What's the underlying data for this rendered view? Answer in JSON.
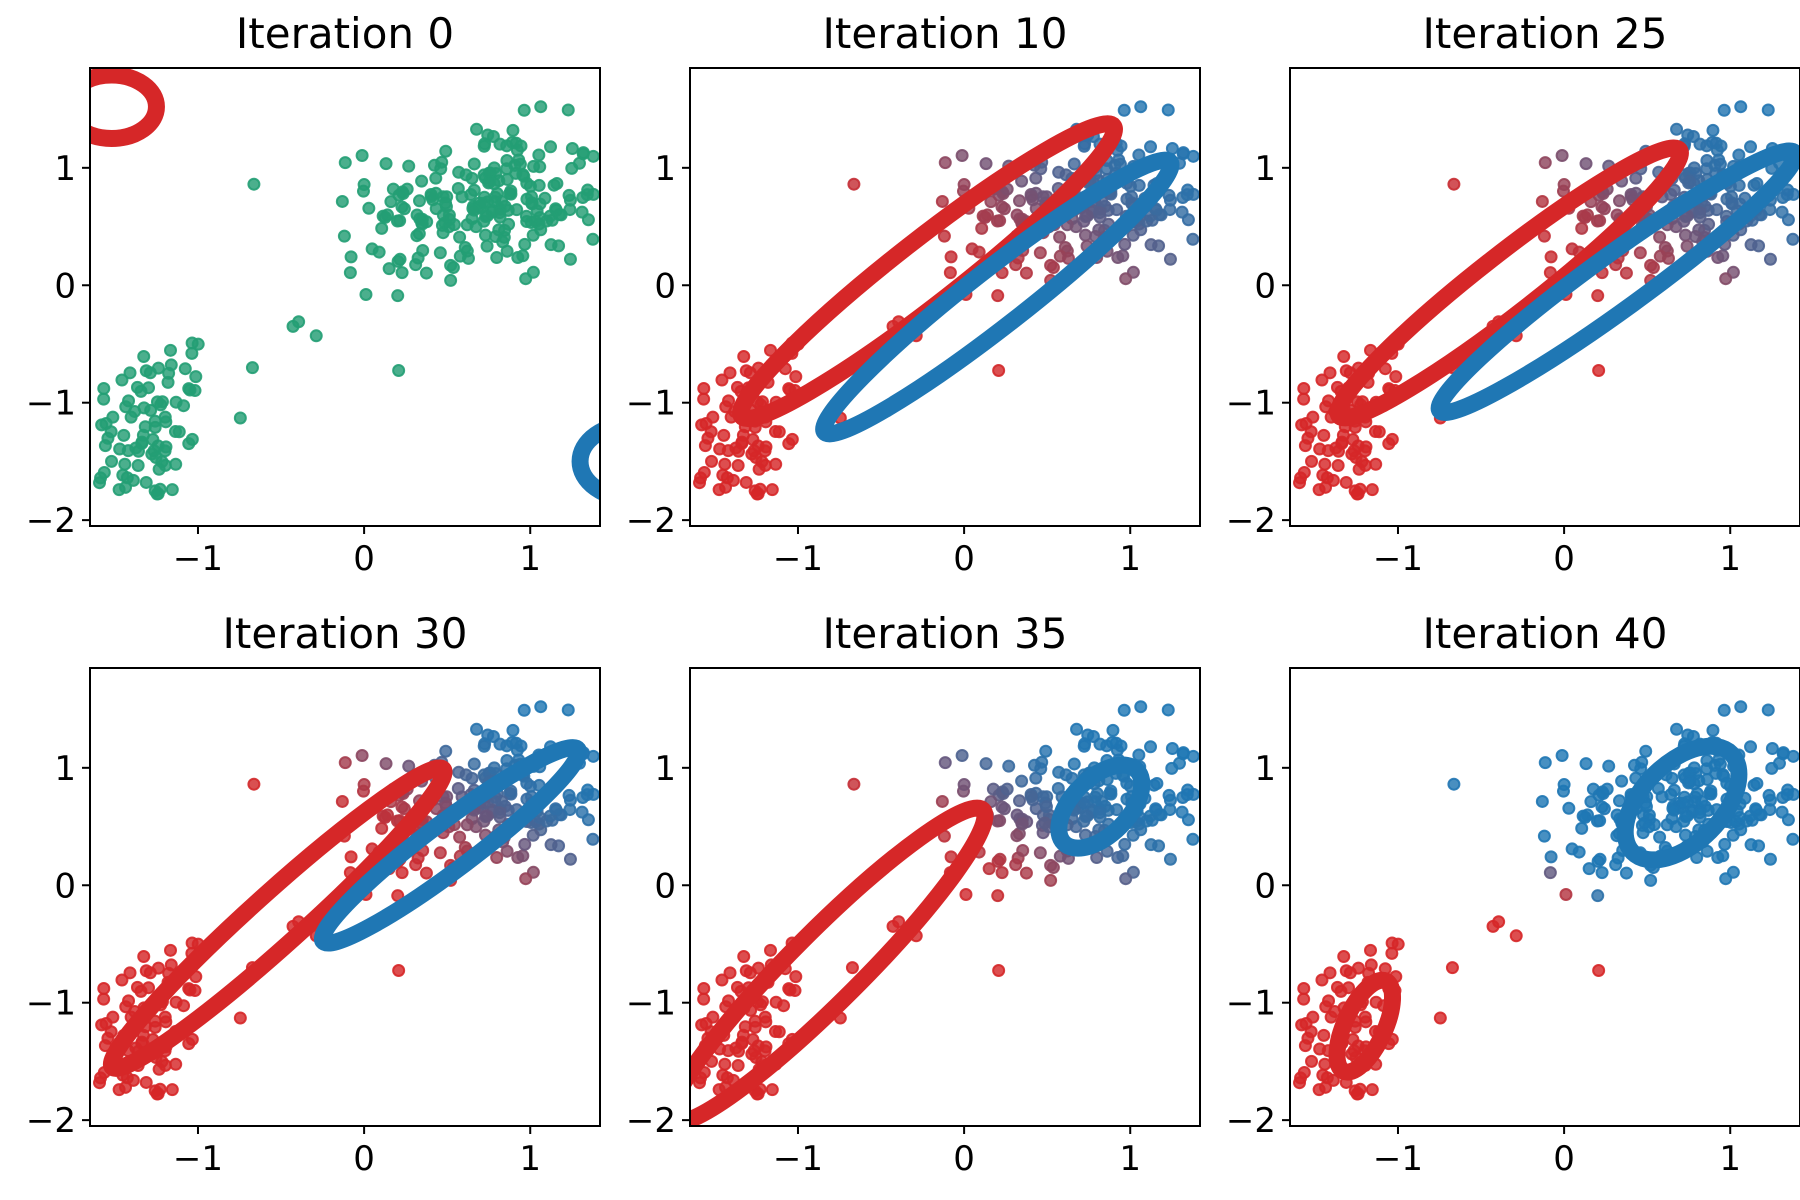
{
  "chart_data": {
    "type": "scatter",
    "description_of_layout": "2 rows x 3 columns of small-multiple scatter plots",
    "xlim": [
      -1.65,
      1.42
    ],
    "ylim": [
      -2.05,
      1.85
    ],
    "xticks": [
      -1,
      0,
      1
    ],
    "yticks": [
      -2,
      -1,
      0,
      1
    ],
    "xtick_labels": [
      "−1",
      "0",
      "1"
    ],
    "ytick_labels": [
      "−2",
      "−1",
      "0",
      "1"
    ],
    "grid": false,
    "colors": {
      "cluster_a": "#d62728",
      "cluster_b": "#1f77b4",
      "unassigned": "#239e74"
    },
    "points_note": "Same data set (two Gaussian blobs) shown in all panels; point color encodes responsibility toward cluster_b (0 = red, 1 = blue).",
    "cluster_centers": [
      [
        -1.3,
        -1.2
      ],
      [
        0.75,
        0.7
      ]
    ],
    "panels": [
      {
        "title": "Iteration 0",
        "mode": "unassigned",
        "ellipses": [
          {
            "color": "cluster_a",
            "cx": -1.52,
            "cy": 1.52,
            "rx": 0.27,
            "ry": 0.27,
            "angle": 0
          },
          {
            "color": "cluster_b",
            "cx": 1.62,
            "cy": -1.5,
            "rx": 0.32,
            "ry": 0.32,
            "angle": 0
          }
        ]
      },
      {
        "title": "Iteration 10",
        "mode": "soft",
        "split": 0.55,
        "softness": 0.45,
        "ellipses": [
          {
            "color": "cluster_a",
            "cx": -0.22,
            "cy": 0.12,
            "rx": 1.42,
            "ry": 0.27,
            "angle": 38
          },
          {
            "color": "cluster_b",
            "cx": 0.2,
            "cy": -0.1,
            "rx": 1.32,
            "ry": 0.24,
            "angle": 38
          }
        ]
      },
      {
        "title": "Iteration 25",
        "mode": "soft",
        "split": 0.55,
        "softness": 0.4,
        "ellipses": [
          {
            "color": "cluster_a",
            "cx": -0.33,
            "cy": 0.02,
            "rx": 1.3,
            "ry": 0.25,
            "angle": 38
          },
          {
            "color": "cluster_b",
            "cx": 0.32,
            "cy": 0.03,
            "rx": 1.32,
            "ry": 0.23,
            "angle": 36
          }
        ]
      },
      {
        "title": "Iteration 30",
        "mode": "soft",
        "split": 0.6,
        "softness": 0.3,
        "ellipses": [
          {
            "color": "cluster_a",
            "cx": -0.52,
            "cy": -0.28,
            "rx": 1.34,
            "ry": 0.22,
            "angle": 42
          },
          {
            "color": "cluster_b",
            "cx": 0.52,
            "cy": 0.34,
            "rx": 0.96,
            "ry": 0.2,
            "angle": 37
          }
        ]
      },
      {
        "title": "Iteration 35",
        "mode": "soft",
        "split": 0.4,
        "softness": 0.3,
        "ellipses": [
          {
            "color": "cluster_a",
            "cx": -0.82,
            "cy": -0.68,
            "rx": 1.32,
            "ry": 0.3,
            "angle": 45
          },
          {
            "color": "cluster_b",
            "cx": 0.82,
            "cy": 0.67,
            "rx": 0.31,
            "ry": 0.24,
            "angle": 45
          }
        ]
      },
      {
        "title": "Iteration 40",
        "mode": "hard",
        "split": 0.0,
        "softness": 0.05,
        "ellipses": [
          {
            "color": "cluster_a",
            "cx": -1.2,
            "cy": -1.2,
            "rx": 0.3,
            "ry": 0.17,
            "angle": 65
          },
          {
            "color": "cluster_b",
            "cx": 0.71,
            "cy": 0.7,
            "rx": 0.42,
            "ry": 0.34,
            "angle": 45
          }
        ]
      }
    ]
  }
}
